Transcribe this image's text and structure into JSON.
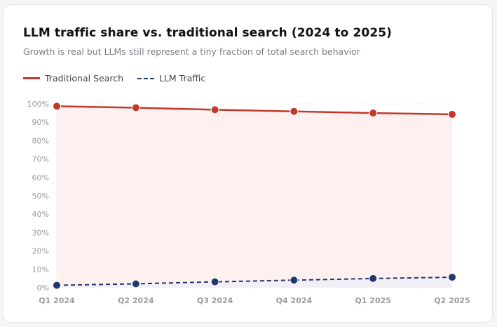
{
  "chart_data": {
    "type": "line",
    "title": "LLM traffic share vs. traditional search (2024 to 2025)",
    "subtitle": "Growth is real but LLMs still represent a tiny fraction of total search behavior",
    "categories": [
      "Q1 2024",
      "Q2 2024",
      "Q3 2024",
      "Q4 2024",
      "Q1 2025",
      "Q2 2025"
    ],
    "ylim": [
      0,
      100
    ],
    "yticks": [
      "0%",
      "10%",
      "20%",
      "30%",
      "40%",
      "50%",
      "60%",
      "70%",
      "80%",
      "90%",
      "100%"
    ],
    "grid": true,
    "legend_position": "top-left",
    "series": [
      {
        "name": "Traditional Search",
        "values": [
          98.7,
          97.9,
          96.8,
          95.9,
          95.0,
          94.3
        ],
        "color": "#c0392b",
        "fill": "#fdf0ef",
        "style": "solid"
      },
      {
        "name": "LLM Traffic",
        "values": [
          1.3,
          2.1,
          3.2,
          4.1,
          5.0,
          5.7
        ],
        "color": "#1f3a6e",
        "fill": "#f1f0f6",
        "style": "dashed"
      }
    ]
  }
}
